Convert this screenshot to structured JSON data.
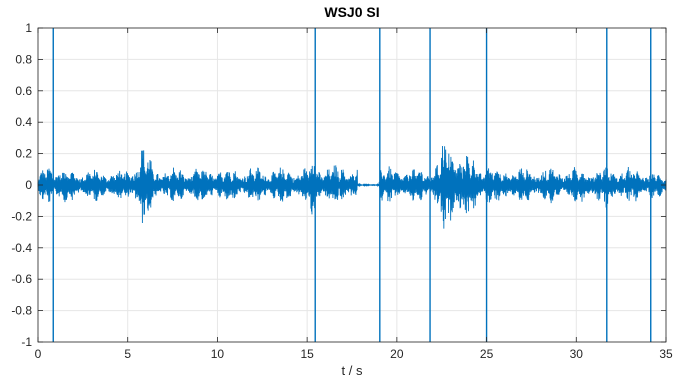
{
  "chart_data": {
    "type": "line",
    "title": "WSJ0 SI",
    "xlabel": "t / s",
    "ylabel": "",
    "xlim": [
      0,
      35
    ],
    "ylim": [
      -1,
      1
    ],
    "xticks": [
      0,
      5,
      10,
      15,
      20,
      25,
      30,
      35
    ],
    "yticks": [
      -1,
      -0.8,
      -0.6,
      -0.4,
      -0.2,
      0,
      0.2,
      0.4,
      0.6,
      0.8,
      1
    ],
    "xtick_labels": [
      "0",
      "5",
      "10",
      "15",
      "20",
      "25",
      "30",
      "35"
    ],
    "ytick_labels": [
      "-1",
      "-0.8",
      "-0.6",
      "-0.4",
      "-0.2",
      "0",
      "0.2",
      "0.4",
      "0.6",
      "0.8",
      "1"
    ],
    "grid": true,
    "line_color": "#0072BD",
    "series": [
      {
        "values": "waveform",
        "envelope": {
          "t": [
            0.0,
            0.75,
            0.9,
            5.0,
            5.8,
            5.9,
            6.5,
            15.0,
            15.4,
            15.5,
            15.7,
            17.8,
            18.2,
            19.0,
            19.1,
            19.3,
            21.8,
            22.2,
            22.7,
            24.9,
            25.0,
            25.2,
            31.6,
            31.7,
            31.8,
            33.3,
            34.1,
            34.2,
            35.0
          ],
          "amplitude": [
            0.06,
            0.2,
            0.12,
            0.1,
            0.29,
            0.28,
            0.12,
            0.12,
            0.25,
            0.2,
            0.14,
            0.13,
            0.0,
            0.02,
            0.14,
            0.12,
            0.12,
            0.15,
            0.34,
            0.12,
            0.28,
            0.12,
            0.12,
            0.2,
            0.12,
            0.12,
            0.1,
            0.1,
            0.06
          ]
        },
        "spikes": [
          {
            "t": 0.85,
            "ymin": -1,
            "ymax": 1
          },
          {
            "t": 15.45,
            "ymin": -1,
            "ymax": 1
          },
          {
            "t": 19.05,
            "ymin": -1,
            "ymax": 1
          },
          {
            "t": 21.85,
            "ymin": -1,
            "ymax": 1
          },
          {
            "t": 25.0,
            "ymin": -1,
            "ymax": 1
          },
          {
            "t": 31.7,
            "ymin": -1,
            "ymax": 1
          },
          {
            "t": 34.15,
            "ymin": -1,
            "ymax": 1
          }
        ],
        "silences": [
          [
            17.8,
            18.9
          ]
        ]
      }
    ]
  }
}
